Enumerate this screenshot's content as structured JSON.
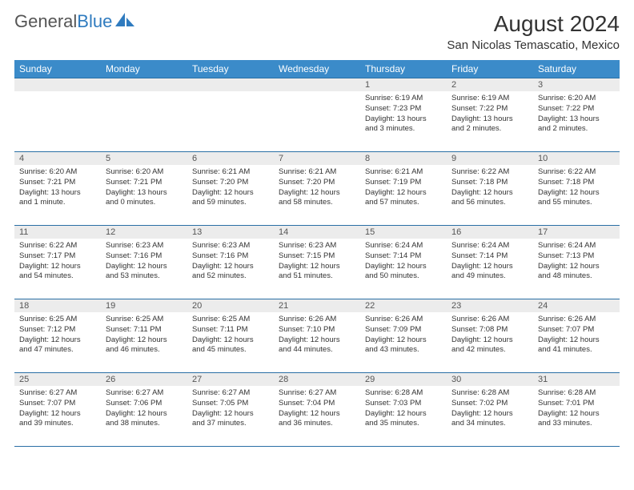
{
  "logo": {
    "text1": "General",
    "text2": "Blue"
  },
  "title": "August 2024",
  "subtitle": "San Nicolas Temascatio, Mexico",
  "colors": {
    "header_bg": "#3b8bc9",
    "header_text": "#ffffff",
    "daynum_bg": "#ececec",
    "border": "#2a6fa5",
    "logo_gray": "#555555",
    "logo_blue": "#2f7bbf"
  },
  "day_headers": [
    "Sunday",
    "Monday",
    "Tuesday",
    "Wednesday",
    "Thursday",
    "Friday",
    "Saturday"
  ],
  "weeks": [
    [
      {
        "n": "",
        "lines": []
      },
      {
        "n": "",
        "lines": []
      },
      {
        "n": "",
        "lines": []
      },
      {
        "n": "",
        "lines": []
      },
      {
        "n": "1",
        "lines": [
          "Sunrise: 6:19 AM",
          "Sunset: 7:23 PM",
          "Daylight: 13 hours",
          "and 3 minutes."
        ]
      },
      {
        "n": "2",
        "lines": [
          "Sunrise: 6:19 AM",
          "Sunset: 7:22 PM",
          "Daylight: 13 hours",
          "and 2 minutes."
        ]
      },
      {
        "n": "3",
        "lines": [
          "Sunrise: 6:20 AM",
          "Sunset: 7:22 PM",
          "Daylight: 13 hours",
          "and 2 minutes."
        ]
      }
    ],
    [
      {
        "n": "4",
        "lines": [
          "Sunrise: 6:20 AM",
          "Sunset: 7:21 PM",
          "Daylight: 13 hours",
          "and 1 minute."
        ]
      },
      {
        "n": "5",
        "lines": [
          "Sunrise: 6:20 AM",
          "Sunset: 7:21 PM",
          "Daylight: 13 hours",
          "and 0 minutes."
        ]
      },
      {
        "n": "6",
        "lines": [
          "Sunrise: 6:21 AM",
          "Sunset: 7:20 PM",
          "Daylight: 12 hours",
          "and 59 minutes."
        ]
      },
      {
        "n": "7",
        "lines": [
          "Sunrise: 6:21 AM",
          "Sunset: 7:20 PM",
          "Daylight: 12 hours",
          "and 58 minutes."
        ]
      },
      {
        "n": "8",
        "lines": [
          "Sunrise: 6:21 AM",
          "Sunset: 7:19 PM",
          "Daylight: 12 hours",
          "and 57 minutes."
        ]
      },
      {
        "n": "9",
        "lines": [
          "Sunrise: 6:22 AM",
          "Sunset: 7:18 PM",
          "Daylight: 12 hours",
          "and 56 minutes."
        ]
      },
      {
        "n": "10",
        "lines": [
          "Sunrise: 6:22 AM",
          "Sunset: 7:18 PM",
          "Daylight: 12 hours",
          "and 55 minutes."
        ]
      }
    ],
    [
      {
        "n": "11",
        "lines": [
          "Sunrise: 6:22 AM",
          "Sunset: 7:17 PM",
          "Daylight: 12 hours",
          "and 54 minutes."
        ]
      },
      {
        "n": "12",
        "lines": [
          "Sunrise: 6:23 AM",
          "Sunset: 7:16 PM",
          "Daylight: 12 hours",
          "and 53 minutes."
        ]
      },
      {
        "n": "13",
        "lines": [
          "Sunrise: 6:23 AM",
          "Sunset: 7:16 PM",
          "Daylight: 12 hours",
          "and 52 minutes."
        ]
      },
      {
        "n": "14",
        "lines": [
          "Sunrise: 6:23 AM",
          "Sunset: 7:15 PM",
          "Daylight: 12 hours",
          "and 51 minutes."
        ]
      },
      {
        "n": "15",
        "lines": [
          "Sunrise: 6:24 AM",
          "Sunset: 7:14 PM",
          "Daylight: 12 hours",
          "and 50 minutes."
        ]
      },
      {
        "n": "16",
        "lines": [
          "Sunrise: 6:24 AM",
          "Sunset: 7:14 PM",
          "Daylight: 12 hours",
          "and 49 minutes."
        ]
      },
      {
        "n": "17",
        "lines": [
          "Sunrise: 6:24 AM",
          "Sunset: 7:13 PM",
          "Daylight: 12 hours",
          "and 48 minutes."
        ]
      }
    ],
    [
      {
        "n": "18",
        "lines": [
          "Sunrise: 6:25 AM",
          "Sunset: 7:12 PM",
          "Daylight: 12 hours",
          "and 47 minutes."
        ]
      },
      {
        "n": "19",
        "lines": [
          "Sunrise: 6:25 AM",
          "Sunset: 7:11 PM",
          "Daylight: 12 hours",
          "and 46 minutes."
        ]
      },
      {
        "n": "20",
        "lines": [
          "Sunrise: 6:25 AM",
          "Sunset: 7:11 PM",
          "Daylight: 12 hours",
          "and 45 minutes."
        ]
      },
      {
        "n": "21",
        "lines": [
          "Sunrise: 6:26 AM",
          "Sunset: 7:10 PM",
          "Daylight: 12 hours",
          "and 44 minutes."
        ]
      },
      {
        "n": "22",
        "lines": [
          "Sunrise: 6:26 AM",
          "Sunset: 7:09 PM",
          "Daylight: 12 hours",
          "and 43 minutes."
        ]
      },
      {
        "n": "23",
        "lines": [
          "Sunrise: 6:26 AM",
          "Sunset: 7:08 PM",
          "Daylight: 12 hours",
          "and 42 minutes."
        ]
      },
      {
        "n": "24",
        "lines": [
          "Sunrise: 6:26 AM",
          "Sunset: 7:07 PM",
          "Daylight: 12 hours",
          "and 41 minutes."
        ]
      }
    ],
    [
      {
        "n": "25",
        "lines": [
          "Sunrise: 6:27 AM",
          "Sunset: 7:07 PM",
          "Daylight: 12 hours",
          "and 39 minutes."
        ]
      },
      {
        "n": "26",
        "lines": [
          "Sunrise: 6:27 AM",
          "Sunset: 7:06 PM",
          "Daylight: 12 hours",
          "and 38 minutes."
        ]
      },
      {
        "n": "27",
        "lines": [
          "Sunrise: 6:27 AM",
          "Sunset: 7:05 PM",
          "Daylight: 12 hours",
          "and 37 minutes."
        ]
      },
      {
        "n": "28",
        "lines": [
          "Sunrise: 6:27 AM",
          "Sunset: 7:04 PM",
          "Daylight: 12 hours",
          "and 36 minutes."
        ]
      },
      {
        "n": "29",
        "lines": [
          "Sunrise: 6:28 AM",
          "Sunset: 7:03 PM",
          "Daylight: 12 hours",
          "and 35 minutes."
        ]
      },
      {
        "n": "30",
        "lines": [
          "Sunrise: 6:28 AM",
          "Sunset: 7:02 PM",
          "Daylight: 12 hours",
          "and 34 minutes."
        ]
      },
      {
        "n": "31",
        "lines": [
          "Sunrise: 6:28 AM",
          "Sunset: 7:01 PM",
          "Daylight: 12 hours",
          "and 33 minutes."
        ]
      }
    ]
  ]
}
